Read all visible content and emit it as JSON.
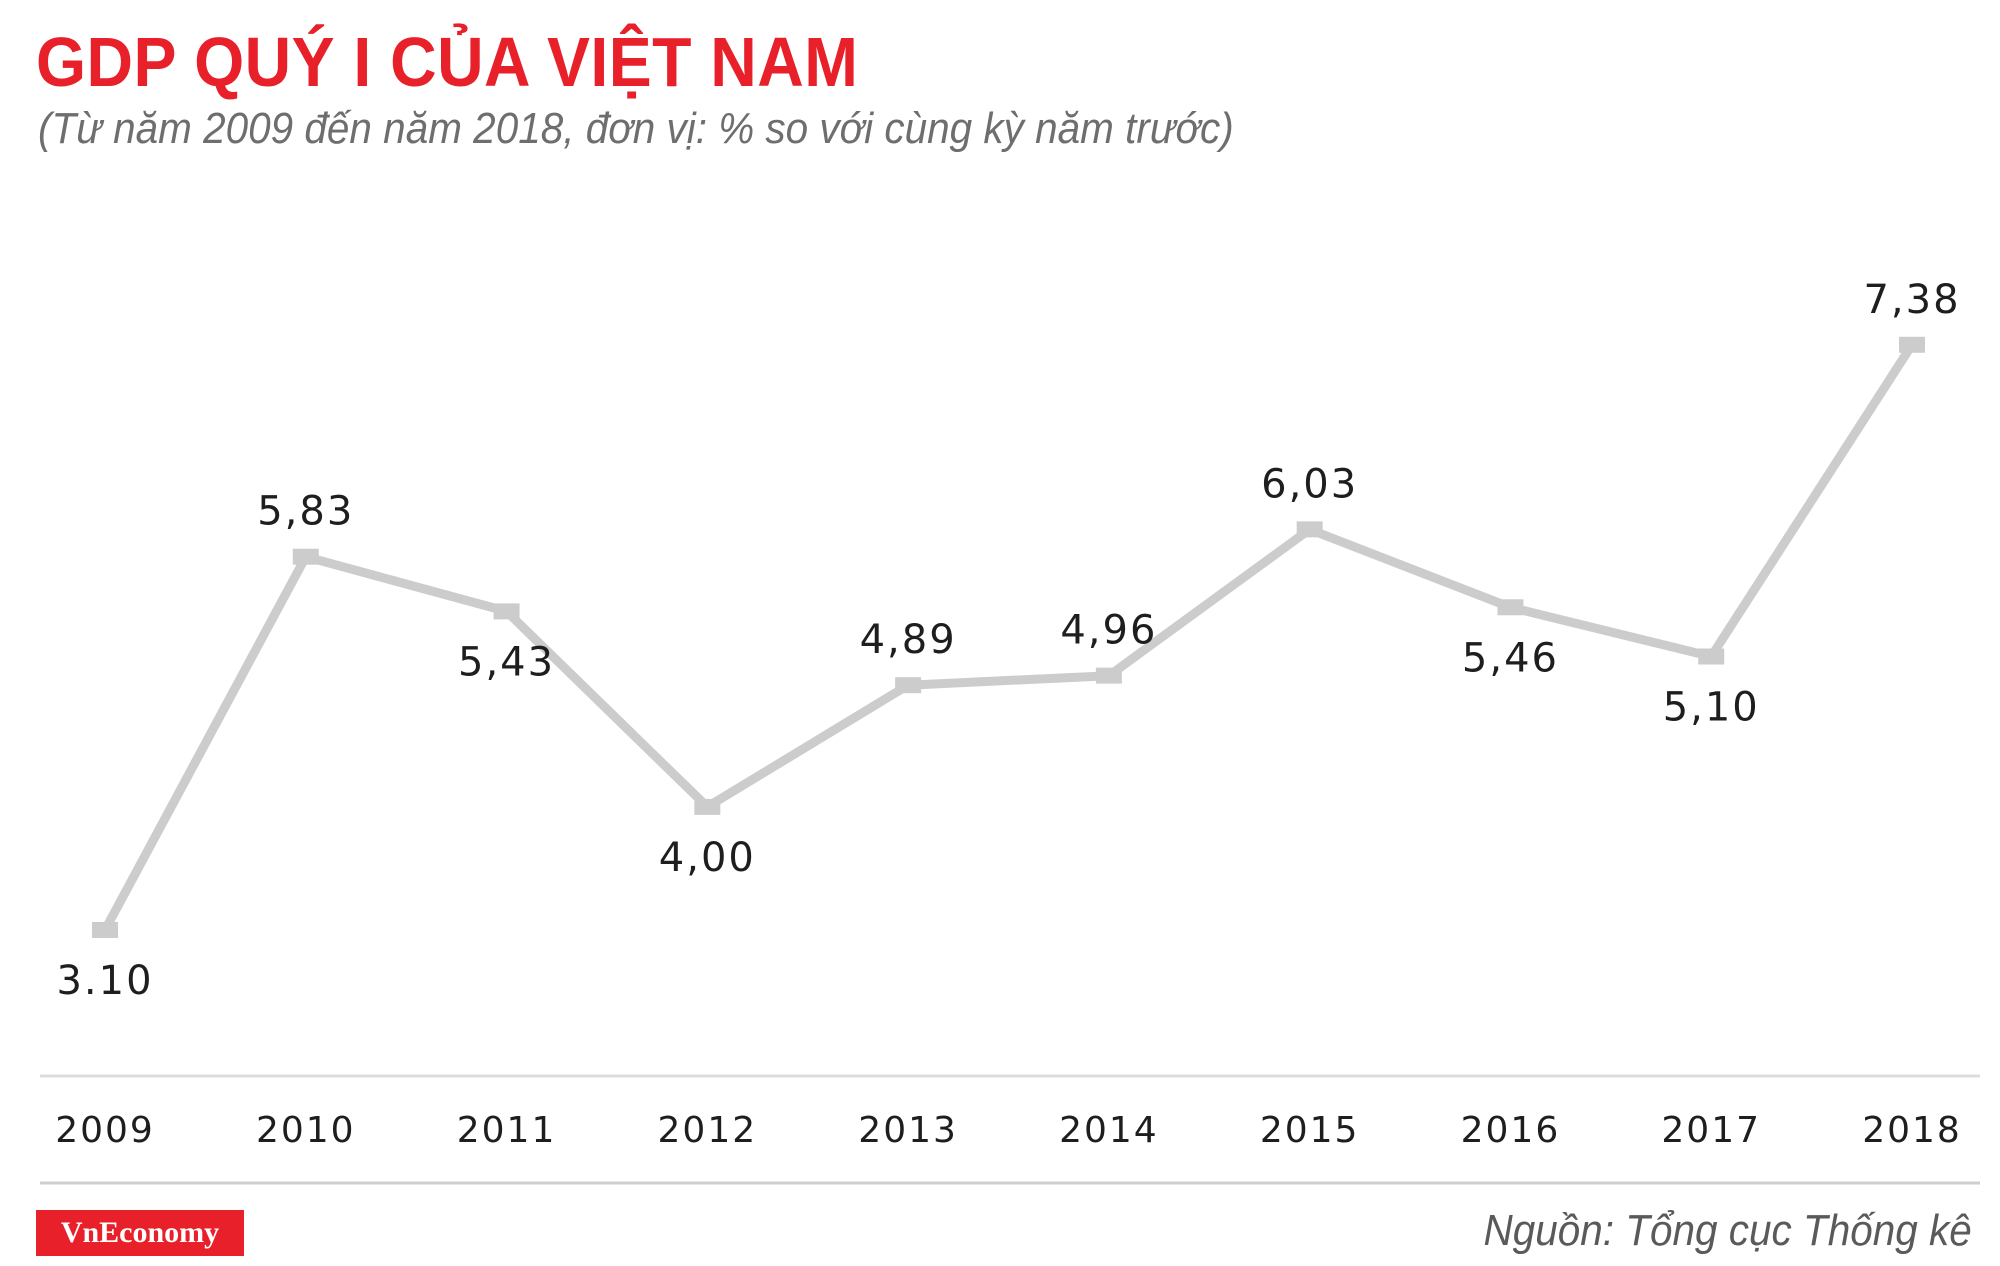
{
  "title": "GDP QUÝ I CỦA VIỆT NAM",
  "subtitle": "(Từ năm 2009 đến năm 2018, đơn vị: % so với cùng kỳ năm trước)",
  "brand": "VnEconomy",
  "source": "Nguồn: Tổng cục Thống kê",
  "colors": {
    "title": "#e8202a",
    "line": "#cccccc",
    "brand": "#e8202a",
    "axis": "#dcdcdc"
  },
  "chart_data": {
    "type": "line",
    "title": "GDP QUÝ I CỦA VIỆT NAM",
    "xlabel": "",
    "ylabel": "% so với cùng kỳ năm trước",
    "categories": [
      "2009",
      "2010",
      "2011",
      "2012",
      "2013",
      "2014",
      "2015",
      "2016",
      "2017",
      "2018"
    ],
    "values": [
      3.1,
      5.83,
      5.43,
      4.0,
      4.89,
      4.96,
      6.03,
      5.46,
      5.1,
      7.38
    ],
    "labels": [
      "3.10",
      "5,83",
      "5,43",
      "4,00",
      "4,89",
      "4,96",
      "6,03",
      "5,46",
      "5,10",
      "7,38"
    ],
    "label_positions": [
      "below",
      "above",
      "below",
      "below",
      "above",
      "above",
      "above",
      "below",
      "below",
      "above"
    ],
    "ylim": [
      2.5,
      8.0
    ],
    "grid": false,
    "legend": "none"
  }
}
